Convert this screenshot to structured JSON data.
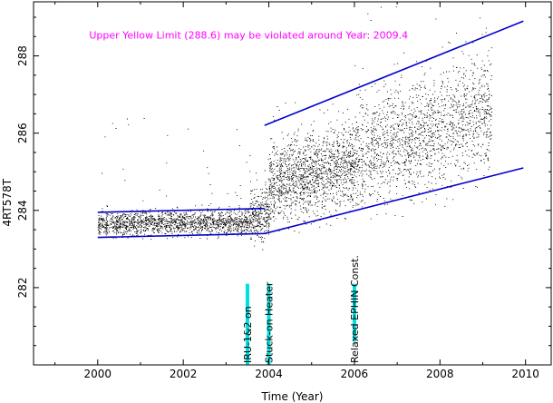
{
  "chart_data": {
    "type": "scatter",
    "title": "",
    "xlabel": "Time (Year)",
    "ylabel": "4RT578T",
    "xlim": [
      1998.5,
      2010.6
    ],
    "ylim": [
      280.0,
      289.4
    ],
    "x_ticks": [
      2000,
      2002,
      2004,
      2006,
      2008,
      2010
    ],
    "x_tick_labels": [
      "2000",
      "2002",
      "2004",
      "2006",
      "2008",
      "2010"
    ],
    "y_ticks": [
      282,
      284,
      286,
      288
    ],
    "y_tick_labels": [
      "282",
      "284",
      "286",
      "288"
    ],
    "grid": false,
    "warning_text": "Upper Yellow  Limit (288.6) may be violated around Year: 2009.4",
    "events": [
      {
        "x": 2003.5,
        "label": "IRU-1&2 on"
      },
      {
        "x": 2004.0,
        "label": "Stuck-on Heater"
      },
      {
        "x": 2006.0,
        "label": "Relaxed EPHIN Const."
      }
    ],
    "trend_lines": [
      {
        "x": [
          2000.0,
          2003.9
        ],
        "y": [
          283.95,
          284.05
        ]
      },
      {
        "x": [
          2000.0,
          2003.9
        ],
        "y": [
          283.3,
          283.4
        ]
      },
      {
        "x": [
          2003.9,
          2009.95
        ],
        "y": [
          286.2,
          288.9
        ]
      },
      {
        "x": [
          2003.9,
          2009.95
        ],
        "y": [
          283.4,
          285.1
        ]
      }
    ],
    "scatter_segments": [
      {
        "x0": 2000.0,
        "x1": 2003.55,
        "y_center0": 283.65,
        "y_center1": 283.7,
        "spread": 0.55,
        "outlier_hi": 286.4,
        "density": 1600
      },
      {
        "x0": 2003.55,
        "x1": 2004.0,
        "y_center0": 283.8,
        "y_center1": 283.9,
        "spread": 1.1,
        "outlier_hi": 285.8,
        "density": 300
      },
      {
        "x0": 2004.0,
        "x1": 2006.0,
        "y_center0": 284.7,
        "y_center1": 285.2,
        "spread": 1.9,
        "outlier_hi": 286.8,
        "density": 1500
      },
      {
        "x0": 2006.0,
        "x1": 2009.2,
        "y_center0": 285.4,
        "y_center1": 286.6,
        "spread": 2.6,
        "outlier_hi": 289.3,
        "density": 2600
      }
    ],
    "colors": {
      "points": "#000000",
      "trend": "#0000cc",
      "warning": "#ff00ff",
      "event_marker": "#00e0e0",
      "axes": "#000000"
    }
  }
}
